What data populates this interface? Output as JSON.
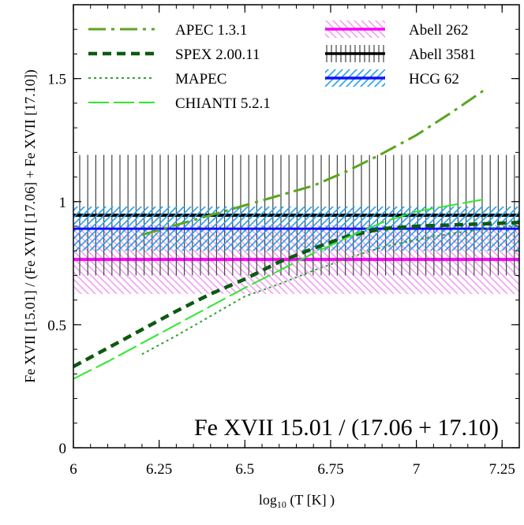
{
  "chart_data": {
    "type": "line",
    "xlabel": "log",
    "xlabel_sub": "10",
    "xlabel_rest": " (T [K] )",
    "ylabel": "Fe XVII [15.01] / (Fe XVII [17.06] + Fe XVII [17.10])",
    "annotation": "Fe XVII 15.01 / (17.06 + 17.10)",
    "xlim": [
      6.0,
      7.3
    ],
    "ylim": [
      0,
      1.8
    ],
    "xticks": [
      6,
      6.25,
      6.5,
      6.75,
      7,
      7.25
    ],
    "xtick_labels": [
      "6",
      "6.25",
      "6.5",
      "6.75",
      "7",
      "7.25"
    ],
    "yticks": [
      0,
      0.5,
      1,
      1.5
    ],
    "ytick_labels": [
      "0",
      "0.5",
      "1",
      "1.5"
    ],
    "grid": false,
    "legend_position": "top",
    "series": [
      {
        "name": "APEC 1.3.1",
        "style": "dash-dot-long",
        "color": "#5aa51e",
        "x": [
          6.2,
          6.3,
          6.4,
          6.5,
          6.6,
          6.7,
          6.8,
          6.9,
          7.0,
          7.1,
          7.2
        ],
        "y": [
          0.865,
          0.905,
          0.945,
          0.985,
          1.025,
          1.065,
          1.125,
          1.195,
          1.27,
          1.36,
          1.455
        ]
      },
      {
        "name": "SPEX 2.00.11",
        "style": "dashed-thick",
        "color": "#0b5a10",
        "x": [
          6.0,
          6.1,
          6.2,
          6.3,
          6.4,
          6.5,
          6.6,
          6.7,
          6.8,
          6.9,
          7.0,
          7.1,
          7.2,
          7.3
        ],
        "y": [
          0.33,
          0.405,
          0.48,
          0.555,
          0.625,
          0.685,
          0.755,
          0.81,
          0.86,
          0.89,
          0.9,
          0.905,
          0.91,
          0.915
        ]
      },
      {
        "name": "MAPEC",
        "style": "dotted",
        "color": "#30a030",
        "x": [
          6.2,
          6.3,
          6.4,
          6.5,
          6.6,
          6.7,
          6.8,
          6.9,
          7.0,
          7.1,
          7.2,
          7.3
        ],
        "y": [
          0.38,
          0.455,
          0.535,
          0.615,
          0.665,
          0.72,
          0.77,
          0.815,
          0.845,
          0.87,
          0.89,
          0.905
        ]
      },
      {
        "name": "CHIANTI 5.2.1",
        "style": "long-dash",
        "color": "#2ee82e",
        "x": [
          6.0,
          6.1,
          6.2,
          6.3,
          6.4,
          6.5,
          6.6,
          6.7,
          6.8,
          6.9,
          7.0,
          7.1,
          7.2
        ],
        "y": [
          0.28,
          0.35,
          0.425,
          0.5,
          0.575,
          0.65,
          0.72,
          0.79,
          0.855,
          0.915,
          0.96,
          0.985,
          1.01
        ]
      }
    ],
    "bands": [
      {
        "name": "Abell 262",
        "color": "#ff00ff",
        "hatch_color": "#f0a0f0",
        "hatch": "diagonal-backslash",
        "value": 0.765,
        "low": 0.625,
        "high": 0.905
      },
      {
        "name": "Abell 3581",
        "color": "#000000",
        "hatch_color": "#444444",
        "hatch": "vertical",
        "value": 0.945,
        "low": 0.7,
        "high": 1.19
      },
      {
        "name": "HCG 62",
        "color": "#1010ff",
        "hatch_color": "#20a0f0",
        "hatch": "diagonal-slash",
        "value": 0.89,
        "low": 0.8,
        "high": 0.98
      }
    ]
  }
}
